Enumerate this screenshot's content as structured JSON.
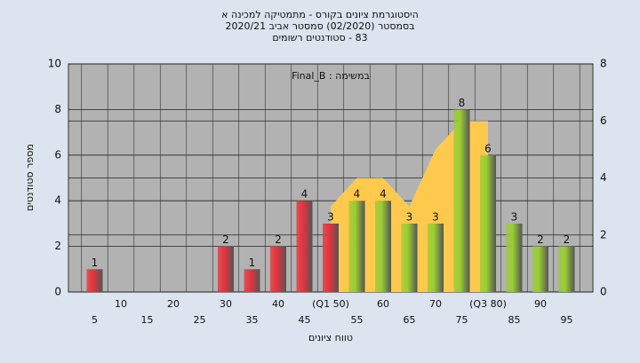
{
  "chart_data": {
    "type": "bar",
    "title_lines": [
      "היסטוגרמת ציונים בקורס - מתמטיקה למכינה א",
      "בסמסטר  (02/2020)  סמסטר אביב 2020/21",
      "83 - סטודנטים רשומים"
    ],
    "annotation": "במשימה : Final_B",
    "y_label": "מספר סטודנטים",
    "x_label": "טווח ציונים",
    "categories": [
      "5",
      "10",
      "15",
      "20",
      "25",
      "30",
      "35",
      "40",
      "45",
      "(Q1 50)",
      "55",
      "60",
      "65",
      "70",
      "75",
      "(Q3 80)",
      "85",
      "90",
      "95"
    ],
    "values": [
      1,
      0,
      0,
      0,
      0,
      2,
      1,
      2,
      4,
      3,
      4,
      4,
      3,
      3,
      8,
      6,
      3,
      2,
      2
    ],
    "bar_colors": [
      "#e8323c",
      "#e8323c",
      "#e8323c",
      "#e8323c",
      "#e8323c",
      "#e8323c",
      "#e8323c",
      "#e8323c",
      "#e8323c",
      "#e8323c",
      "#9acd32",
      "#9acd32",
      "#9acd32",
      "#9acd32",
      "#9acd32",
      "#9acd32",
      "#9acd32",
      "#9acd32",
      "#9acd32"
    ],
    "area": {
      "color": "#ffc94d",
      "axis": "y2",
      "values": [
        null,
        null,
        null,
        null,
        null,
        null,
        null,
        null,
        null,
        3,
        4,
        4,
        3,
        5,
        6,
        6,
        null,
        null,
        null
      ]
    },
    "ylim": [
      0,
      10
    ],
    "yticks": [
      0,
      2,
      4,
      6,
      8,
      10
    ],
    "y2lim": [
      0,
      8
    ],
    "y2ticks": [
      0,
      2,
      4,
      6,
      8
    ],
    "grid": true
  }
}
